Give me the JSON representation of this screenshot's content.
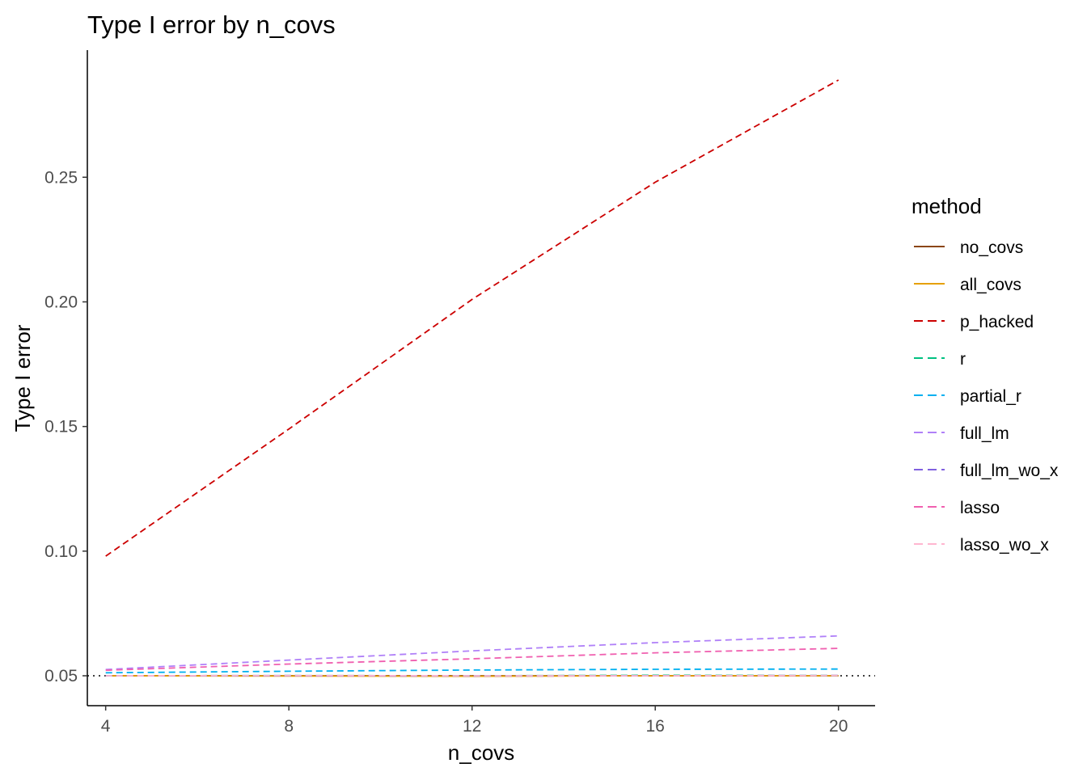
{
  "chart_data": {
    "type": "line",
    "title": "Type I error by n_covs",
    "xlabel": "n_covs",
    "ylabel": "Type I error",
    "x": [
      4,
      8,
      12,
      16,
      20
    ],
    "xticks": [
      4,
      8,
      12,
      16,
      20
    ],
    "yticks": [
      0.05,
      0.1,
      0.15,
      0.2,
      0.25
    ],
    "ytick_labels": [
      "0.05",
      "0.10",
      "0.15",
      "0.20",
      "0.25"
    ],
    "xlim": [
      3.6,
      20.8
    ],
    "ylim": [
      0.038,
      0.301
    ],
    "grid": false,
    "legend_title": "method",
    "legend_position": "right",
    "reference_line": {
      "y": 0.05,
      "style": "dotted",
      "color": "#000000"
    },
    "series": [
      {
        "name": "no_covs",
        "color": "#8B4513",
        "dash": "solid",
        "values": [
          0.05,
          0.05,
          0.05,
          0.05,
          0.05
        ]
      },
      {
        "name": "all_covs",
        "color": "#E6A000",
        "dash": "solid",
        "values": [
          0.05,
          0.0499,
          0.0498,
          0.05,
          0.05
        ]
      },
      {
        "name": "p_hacked",
        "color": "#CC0000",
        "dash": "dashed",
        "values": [
          0.098,
          0.149,
          0.201,
          0.248,
          0.289
        ]
      },
      {
        "name": "r",
        "color": "#00C080",
        "dash": "dashed",
        "values": [
          0.05,
          0.0501,
          0.05,
          0.0502,
          0.0501
        ]
      },
      {
        "name": "partial_r",
        "color": "#00B0F0",
        "dash": "dashed",
        "values": [
          0.0512,
          0.0518,
          0.0523,
          0.0526,
          0.0527
        ]
      },
      {
        "name": "full_lm",
        "color": "#B080F8",
        "dash": "dashed",
        "values": [
          0.0525,
          0.0563,
          0.06,
          0.0633,
          0.066
        ]
      },
      {
        "name": "full_lm_wo_x",
        "color": "#8060E0",
        "dash": "dashed",
        "values": [
          0.05,
          0.05,
          0.0499,
          0.05,
          0.0501
        ]
      },
      {
        "name": "lasso",
        "color": "#F060B0",
        "dash": "dashed",
        "values": [
          0.0522,
          0.0547,
          0.0568,
          0.0592,
          0.061
        ]
      },
      {
        "name": "lasso_wo_x",
        "color": "#FFB6D0",
        "dash": "dashed",
        "values": [
          0.05,
          0.0501,
          0.05,
          0.05,
          0.0501
        ]
      }
    ]
  }
}
